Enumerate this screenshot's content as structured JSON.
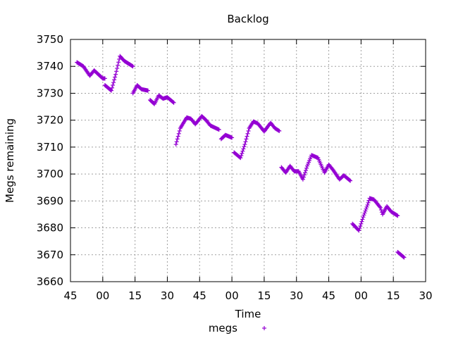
{
  "chart_data": {
    "type": "scatter",
    "title": "Backlog",
    "xlabel": "Time",
    "ylabel": "Megs remaining",
    "x_ticks": [
      "45",
      "00",
      "15",
      "30",
      "45",
      "00",
      "15",
      "30",
      "45",
      "00",
      "15",
      "30"
    ],
    "y_ticks": [
      3660,
      3670,
      3680,
      3690,
      3700,
      3710,
      3720,
      3730,
      3740,
      3750
    ],
    "ylim": [
      3660,
      3750
    ],
    "xlim_minutes": [
      0,
      165
    ],
    "grid": true,
    "legend_position": "bottom-center",
    "series": [
      {
        "name": "megs",
        "color": "#9400d3",
        "marker": "plus",
        "segments": [
          [
            [
              3,
              3741.5
            ],
            [
              6,
              3740
            ],
            [
              9,
              3736.5
            ],
            [
              11,
              3738.5
            ],
            [
              13,
              3737
            ],
            [
              15,
              3735.5
            ],
            [
              16,
              3735.5
            ]
          ],
          [
            [
              16,
              3733
            ],
            [
              19,
              3731
            ],
            [
              21,
              3737
            ],
            [
              23,
              3743.8
            ],
            [
              25,
              3742
            ],
            [
              29,
              3740
            ]
          ],
          [
            [
              29,
              3730
            ],
            [
              31,
              3733
            ],
            [
              33,
              3731.5
            ],
            [
              36,
              3731
            ]
          ],
          [
            [
              37,
              3727.5
            ],
            [
              39,
              3726
            ],
            [
              41,
              3729.2
            ],
            [
              43,
              3728
            ],
            [
              45,
              3728.5
            ],
            [
              48,
              3726.5
            ]
          ],
          [
            [
              49,
              3711
            ],
            [
              51,
              3717
            ],
            [
              54,
              3721
            ],
            [
              56,
              3720.5
            ],
            [
              58,
              3718.5
            ],
            [
              61,
              3721.5
            ],
            [
              63,
              3720
            ],
            [
              65,
              3718
            ],
            [
              69,
              3716.5
            ]
          ],
          [
            [
              70,
              3713
            ],
            [
              72,
              3714.5
            ],
            [
              75,
              3713.5
            ]
          ],
          [
            [
              76,
              3708
            ],
            [
              79,
              3706
            ],
            [
              81,
              3711
            ],
            [
              83,
              3717
            ],
            [
              85,
              3719.5
            ],
            [
              87,
              3718.8
            ],
            [
              90,
              3715.8
            ],
            [
              92,
              3718
            ],
            [
              93,
              3719
            ],
            [
              95,
              3717
            ],
            [
              97,
              3716
            ]
          ],
          [
            [
              98,
              3702.5
            ],
            [
              100,
              3700.5
            ],
            [
              102,
              3703
            ],
            [
              104,
              3701
            ],
            [
              106,
              3701
            ],
            [
              108,
              3698
            ],
            [
              110,
              3703
            ],
            [
              112,
              3707
            ],
            [
              115,
              3706
            ],
            [
              118,
              3700.5
            ],
            [
              120,
              3703.5
            ],
            [
              122,
              3701.5
            ],
            [
              125,
              3698
            ],
            [
              127,
              3699.5
            ],
            [
              130,
              3697.5
            ]
          ],
          [
            [
              131,
              3681.5
            ],
            [
              134,
              3679
            ],
            [
              136,
              3684
            ],
            [
              138,
              3688.5
            ],
            [
              139,
              3691
            ],
            [
              141,
              3690.5
            ],
            [
              144,
              3687.5
            ],
            [
              145,
              3685
            ],
            [
              147,
              3688
            ],
            [
              149,
              3686
            ],
            [
              152,
              3684.5
            ]
          ],
          [
            [
              152,
              3671
            ],
            [
              155,
              3669
            ]
          ]
        ]
      }
    ]
  }
}
